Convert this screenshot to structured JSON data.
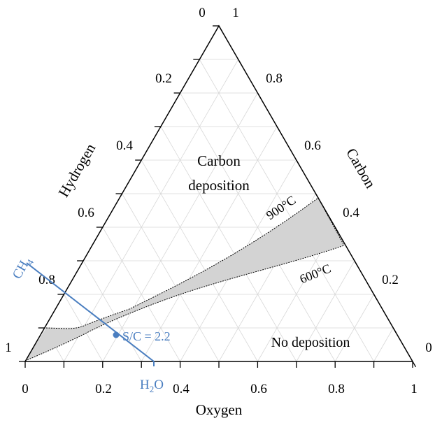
{
  "diagram": {
    "axes": {
      "oxygen": {
        "label": "Oxygen",
        "ticks": [
          "0",
          "0.2",
          "0.4",
          "0.6",
          "0.8",
          "1"
        ]
      },
      "hydrogen": {
        "label": "Hydrogen",
        "ticks": [
          "0",
          "0.2",
          "0.4",
          "0.6",
          "0.8",
          "1"
        ]
      },
      "carbon": {
        "label": "Carbon",
        "ticks": [
          "0",
          "0.2",
          "0.4",
          "0.6",
          "0.8",
          "1"
        ]
      }
    },
    "regions": {
      "carbon_deposition": [
        "Carbon",
        "deposition"
      ],
      "no_deposition": "No deposition"
    },
    "isotherms": {
      "upper": "900°C",
      "lower": "600°C"
    },
    "line": {
      "ch4": {
        "main": "CH",
        "sub": "4"
      },
      "h2o": {
        "main": "H",
        "sub": "2",
        "tail": "O"
      },
      "point_label": "S/C = 2.2"
    },
    "colors": {
      "axis": "#000000",
      "grid": "#d7d7d7",
      "band_fill": "#d3d3d3",
      "line_blue": "#4a7ec0",
      "text": "#000000"
    }
  }
}
